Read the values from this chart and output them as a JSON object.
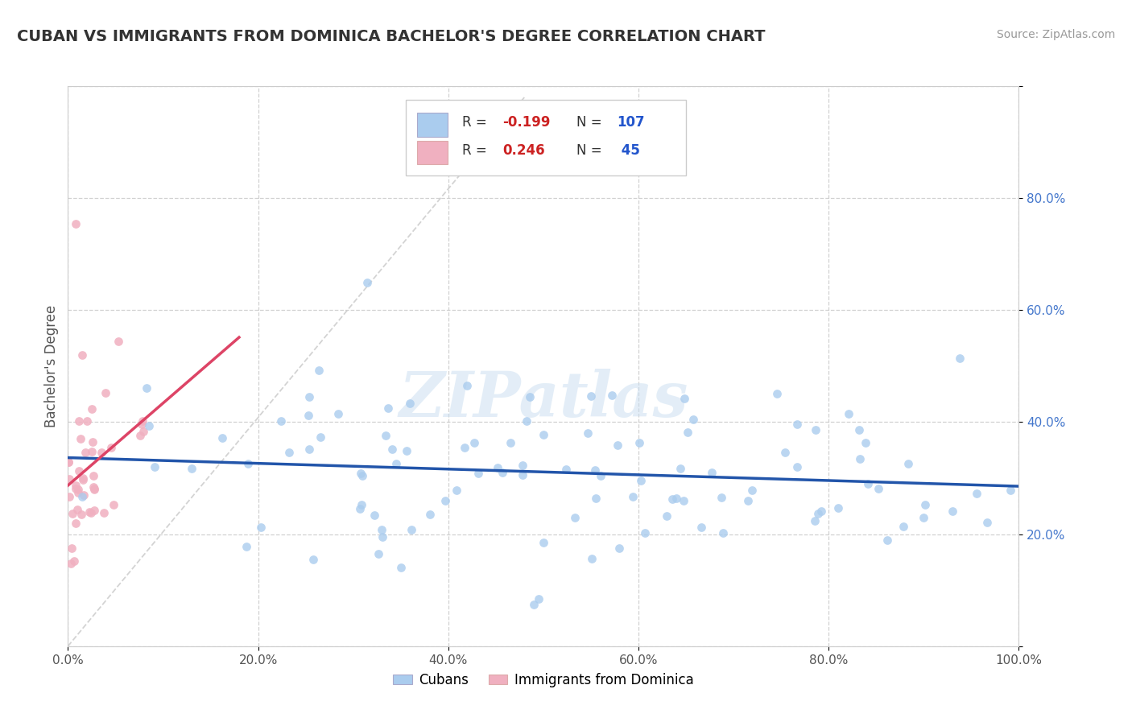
{
  "title": "CUBAN VS IMMIGRANTS FROM DOMINICA BACHELOR'S DEGREE CORRELATION CHART",
  "source_text": "Source: ZipAtlas.com",
  "ylabel": "Bachelor's Degree",
  "xlim": [
    0,
    1
  ],
  "ylim": [
    0,
    1
  ],
  "xticks": [
    0.0,
    0.2,
    0.4,
    0.6,
    0.8,
    1.0
  ],
  "yticks": [
    0.0,
    0.2,
    0.4,
    0.6,
    0.8,
    1.0
  ],
  "xticklabels": [
    "0.0%",
    "20.0%",
    "40.0%",
    "60.0%",
    "80.0%",
    "100.0%"
  ],
  "yticklabels": [
    "",
    "20.0%",
    "40.0%",
    "60.0%",
    "80.0%",
    ""
  ],
  "cubans_R": -0.199,
  "cubans_N": 107,
  "dominica_R": 0.246,
  "dominica_N": 45,
  "blue_color": "#aaccee",
  "blue_edge": "#aaccee",
  "blue_line_color": "#2255aa",
  "pink_color": "#f0b0c0",
  "pink_edge": "#f0b0c0",
  "pink_line_color": "#dd4466",
  "legend_R_color": "#cc2222",
  "legend_N_color": "#2255cc",
  "ytick_color": "#4477cc",
  "xtick_color": "#555555",
  "background_color": "#ffffff",
  "grid_color": "#cccccc",
  "title_color": "#333333",
  "watermark": "ZIPatlas",
  "diag_color": "#cccccc"
}
